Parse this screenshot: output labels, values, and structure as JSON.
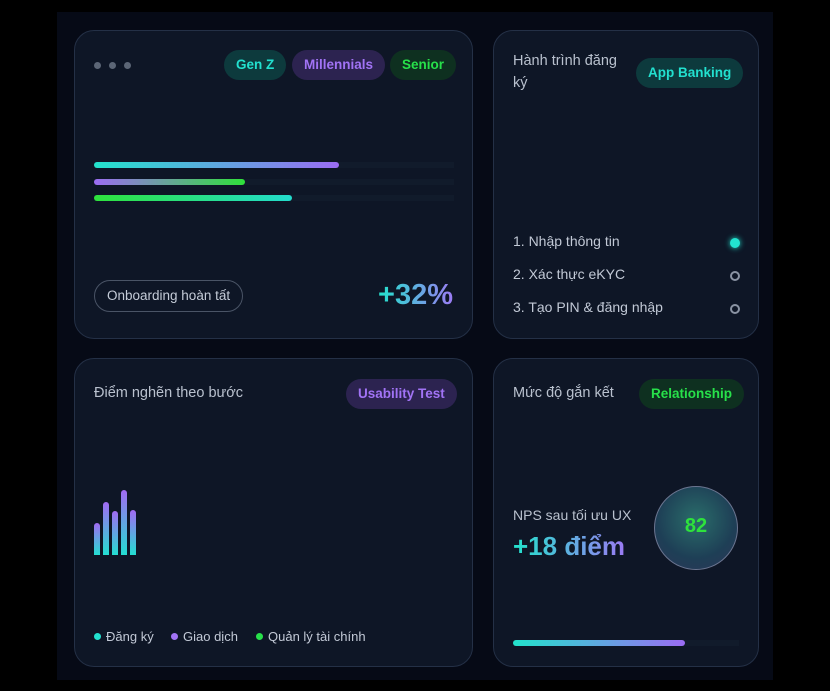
{
  "segments": {
    "tags": [
      {
        "label": "Gen Z",
        "color": "#22e0cf"
      },
      {
        "label": "Millennials",
        "color": "#a173f5"
      },
      {
        "label": "Senior",
        "color": "#27e04a"
      }
    ],
    "progress": [
      {
        "segment": "Gen Z",
        "fraction": 0.68
      },
      {
        "segment": "Millennials",
        "fraction": 0.42
      },
      {
        "segment": "Senior",
        "fraction": 0.55
      }
    ],
    "status_pill": "Onboarding hoàn tất",
    "delta": "+32%"
  },
  "journey": {
    "title": "Hành trình đăng ký",
    "tag": "App Banking",
    "steps": [
      {
        "label": "1. Nhập thông tin",
        "state": "active"
      },
      {
        "label": "2. Xác thực eKYC",
        "state": "pending"
      },
      {
        "label": "3. Tạo PIN & đăng nhập",
        "state": "pending"
      }
    ]
  },
  "bottlenecks": {
    "title": "Điểm nghẽn theo bước",
    "tag": "Usability Test",
    "bar_levels": [
      0.48,
      0.81,
      0.66,
      0.98,
      0.68
    ],
    "legend": [
      {
        "label": "Đăng ký",
        "color": "#22e0cf"
      },
      {
        "label": "Giao dịch",
        "color": "#a173f5"
      },
      {
        "label": "Quản lý tài chính",
        "color": "#27e04a"
      }
    ]
  },
  "engagement": {
    "title": "Mức độ gắn kết",
    "tag": "Relationship",
    "nps_label": "NPS sau tối ưu UX",
    "nps_delta": "+18 điểm",
    "score": "82",
    "progress_fraction": 0.76
  }
}
